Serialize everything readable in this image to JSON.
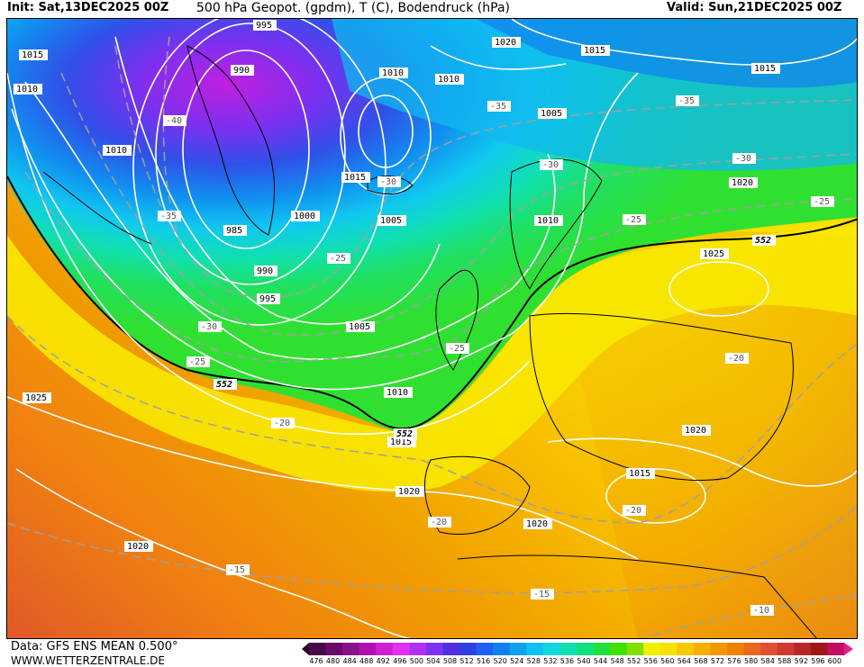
{
  "header": {
    "init": "Init: Sat,13DEC2025 00Z",
    "title": "500 hPa Geopot. (gpdm), T (C), Bodendruck (hPa)",
    "valid": "Valid: Sun,21DEC2025 00Z"
  },
  "footer": {
    "data_source": "Data: GFS ENS MEAN 0.500°",
    "website": "WWW.WETTERZENTRALE.DE"
  },
  "colorbar": {
    "labels": [
      "476",
      "480",
      "484",
      "488",
      "492",
      "496",
      "500",
      "504",
      "508",
      "512",
      "516",
      "520",
      "524",
      "528",
      "532",
      "536",
      "540",
      "544",
      "548",
      "552",
      "556",
      "560",
      "564",
      "568",
      "572",
      "576",
      "580",
      "584",
      "588",
      "592",
      "596",
      "600"
    ],
    "colors": [
      "#4a0a4a",
      "#6a0a6a",
      "#8a108a",
      "#b010b0",
      "#d020d0",
      "#e030f0",
      "#b030f0",
      "#8030f0",
      "#5030e0",
      "#3040e0",
      "#2060f0",
      "#1080f0",
      "#10a0f0",
      "#10c0f0",
      "#10d8e0",
      "#10e0b0",
      "#10e080",
      "#20e040",
      "#40e000",
      "#80e000",
      "#f0f000",
      "#f8e000",
      "#f8c800",
      "#f8b000",
      "#f09800",
      "#f08000",
      "#e86820",
      "#e05030",
      "#d03a30",
      "#b82828",
      "#a01818",
      "#c01060"
    ]
  },
  "map_labels": {
    "pressure": [
      {
        "text": "995"
      },
      {
        "text": "1015"
      },
      {
        "text": "1010"
      },
      {
        "text": "990"
      },
      {
        "text": "1010"
      },
      {
        "text": "1020"
      },
      {
        "text": "1015"
      },
      {
        "text": "1010"
      },
      {
        "text": "1015"
      },
      {
        "text": "1005"
      },
      {
        "text": "1010"
      },
      {
        "text": "1015"
      },
      {
        "text": "1000"
      },
      {
        "text": "1005"
      },
      {
        "text": "985"
      },
      {
        "text": "1010"
      },
      {
        "text": "1020"
      },
      {
        "text": "990"
      },
      {
        "text": "995"
      },
      {
        "text": "1025"
      },
      {
        "text": "1005"
      },
      {
        "text": "1010"
      },
      {
        "text": "1025"
      },
      {
        "text": "1015"
      },
      {
        "text": "1020"
      },
      {
        "text": "1015"
      },
      {
        "text": "1020"
      },
      {
        "text": "1020"
      },
      {
        "text": "1020"
      }
    ],
    "temperature": [
      {
        "text": "-40"
      },
      {
        "text": "-35"
      },
      {
        "text": "-35"
      },
      {
        "text": "-35"
      },
      {
        "text": "-30"
      },
      {
        "text": "-30"
      },
      {
        "text": "-30"
      },
      {
        "text": "-25"
      },
      {
        "text": "-25"
      },
      {
        "text": "-25"
      },
      {
        "text": "-25"
      },
      {
        "text": "-30"
      },
      {
        "text": "-25"
      },
      {
        "text": "-20"
      },
      {
        "text": "-20"
      },
      {
        "text": "-20"
      },
      {
        "text": "-20"
      },
      {
        "text": "-15"
      },
      {
        "text": "-15"
      },
      {
        "text": "-10"
      }
    ],
    "geopotential": [
      {
        "text": "552"
      },
      {
        "text": "552"
      },
      {
        "text": "552"
      }
    ]
  }
}
